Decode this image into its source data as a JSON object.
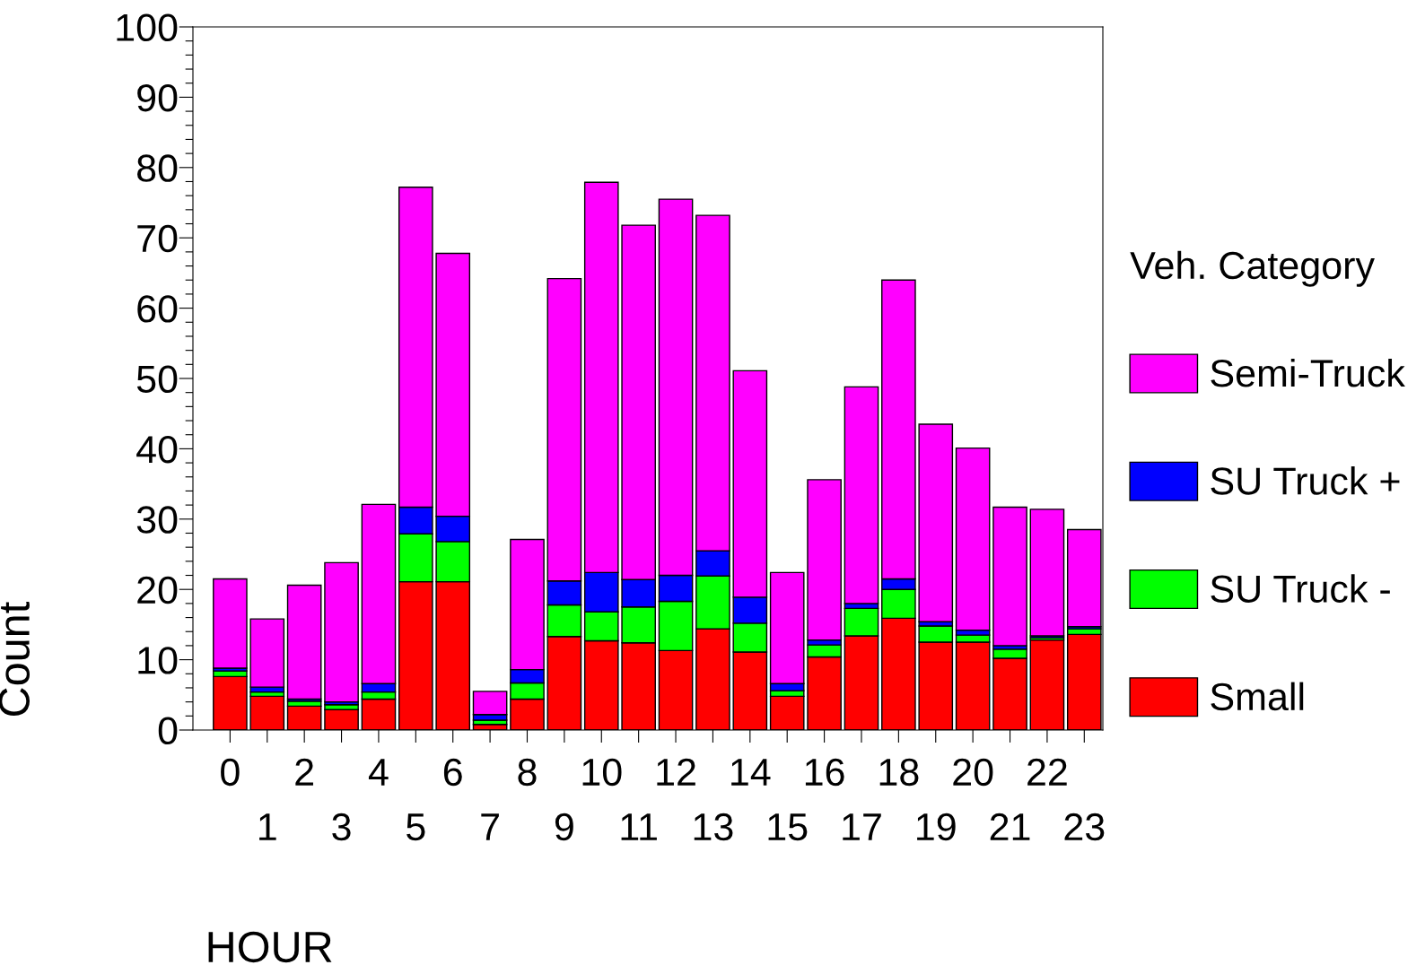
{
  "chart_data": {
    "type": "bar",
    "stacked": true,
    "xlabel": "HOUR",
    "ylabel": "Count",
    "legend_title": "Veh. Category",
    "categories": [
      "0",
      "1",
      "2",
      "3",
      "4",
      "5",
      "6",
      "7",
      "8",
      "9",
      "10",
      "11",
      "12",
      "13",
      "14",
      "15",
      "16",
      "17",
      "18",
      "19",
      "20",
      "21",
      "22",
      "23"
    ],
    "series": [
      {
        "name": "Small",
        "color": "#ff0000",
        "values": [
          7.6,
          4.8,
          3.4,
          2.9,
          4.4,
          21.1,
          21.1,
          0.8,
          4.4,
          13.3,
          12.7,
          12.4,
          11.3,
          14.4,
          11.1,
          4.8,
          10.4,
          13.4,
          15.9,
          12.5,
          12.5,
          10.2,
          12.8,
          13.6
        ]
      },
      {
        "name": "SU Truck -",
        "color": "#00ff00",
        "values": [
          0.8,
          0.6,
          0.7,
          0.7,
          1.0,
          6.8,
          5.7,
          0.6,
          2.3,
          4.5,
          4.1,
          5.1,
          7.0,
          7.5,
          4.1,
          0.8,
          1.7,
          3.9,
          4.1,
          2.3,
          1.0,
          1.3,
          0.3,
          0.8
        ]
      },
      {
        "name": "SU Truck +",
        "color": "#0000ff",
        "values": [
          0.4,
          0.7,
          0.3,
          0.4,
          1.2,
          3.8,
          3.6,
          0.8,
          1.9,
          3.4,
          5.6,
          3.9,
          3.7,
          3.6,
          3.7,
          1.0,
          0.7,
          0.7,
          1.5,
          0.6,
          0.7,
          0.5,
          0.3,
          0.3
        ]
      },
      {
        "name": "Semi-Truck",
        "color": "#ff00ff",
        "values": [
          12.7,
          9.7,
          16.2,
          19.8,
          25.5,
          45.5,
          37.4,
          3.3,
          18.5,
          43.0,
          55.5,
          50.4,
          53.5,
          47.7,
          32.2,
          15.8,
          22.8,
          30.8,
          42.5,
          28.1,
          25.9,
          19.7,
          18.0,
          13.8
        ]
      }
    ],
    "ylim": [
      0,
      100
    ],
    "yticks": [
      0,
      {
        "value": 2,
        "label": null
      },
      {
        "value": 4,
        "label": null
      },
      {
        "value": 6,
        "label": null
      },
      {
        "value": 8,
        "label": null
      },
      10,
      {
        "value": 12,
        "label": null
      },
      {
        "value": 14,
        "label": null
      },
      {
        "value": 16,
        "label": null
      },
      {
        "value": 18,
        "label": null
      },
      20,
      {
        "value": 22,
        "label": null
      },
      {
        "value": 24,
        "label": null
      },
      {
        "value": 26,
        "label": null
      },
      {
        "value": 28,
        "label": null
      },
      30,
      {
        "value": 32,
        "label": null
      },
      {
        "value": 34,
        "label": null
      },
      {
        "value": 36,
        "label": null
      },
      {
        "value": 38,
        "label": null
      },
      40,
      {
        "value": 42,
        "label": null
      },
      {
        "value": 44,
        "label": null
      },
      {
        "value": 46,
        "label": null
      },
      {
        "value": 48,
        "label": null
      },
      50,
      {
        "value": 52,
        "label": null
      },
      {
        "value": 54,
        "label": null
      },
      {
        "value": 56,
        "label": null
      },
      {
        "value": 58,
        "label": null
      },
      60,
      {
        "value": 62,
        "label": null
      },
      {
        "value": 64,
        "label": null
      },
      {
        "value": 66,
        "label": null
      },
      {
        "value": 68,
        "label": null
      },
      70,
      {
        "value": 72,
        "label": null
      },
      {
        "value": 74,
        "label": null
      },
      {
        "value": 76,
        "label": null
      },
      {
        "value": 78,
        "label": null
      },
      80,
      {
        "value": 82,
        "label": null
      },
      {
        "value": 84,
        "label": null
      },
      {
        "value": 86,
        "label": null
      },
      {
        "value": 88,
        "label": null
      },
      90,
      {
        "value": 92,
        "label": null
      },
      {
        "value": 94,
        "label": null
      },
      {
        "value": 96,
        "label": null
      },
      {
        "value": 98,
        "label": null
      },
      100
    ],
    "grid": false,
    "legend": "right"
  }
}
